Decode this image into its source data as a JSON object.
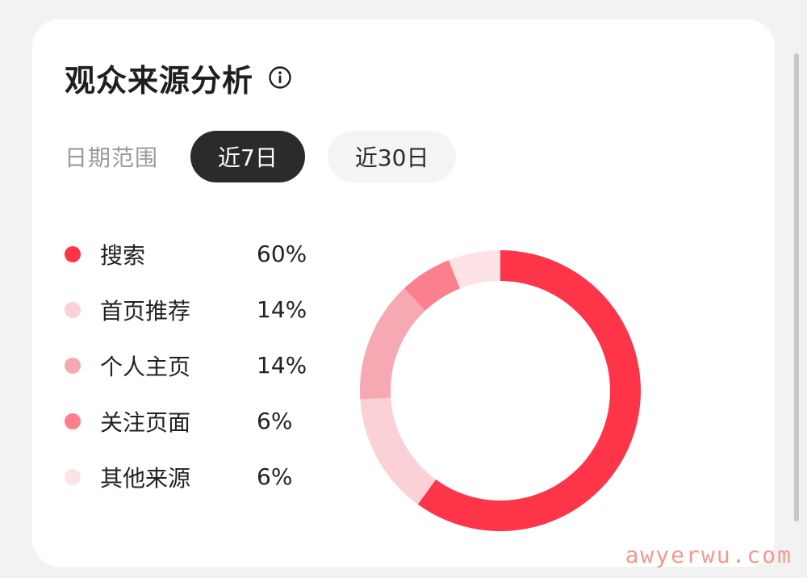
{
  "header": {
    "title": "观众来源分析",
    "info_icon": "info-circle-icon"
  },
  "date_range": {
    "label": "日期范围",
    "options": [
      {
        "label": "近7日",
        "active": true
      },
      {
        "label": "近30日",
        "active": false
      }
    ]
  },
  "chart_data": {
    "type": "pie",
    "variant": "donut",
    "categories": [
      "搜索",
      "首页推荐",
      "个人主页",
      "关注页面",
      "其他来源"
    ],
    "values": [
      60,
      14,
      14,
      6,
      6
    ],
    "value_labels": [
      "60%",
      "14%",
      "14%",
      "6%",
      "6%"
    ],
    "colors": [
      "#fe3548",
      "#fbd1d6",
      "#f7a9b3",
      "#fb7f8c",
      "#fde3e6"
    ],
    "start_angle": "top",
    "direction": "clockwise",
    "legend_position": "left"
  },
  "watermark": "awyerwu.com"
}
